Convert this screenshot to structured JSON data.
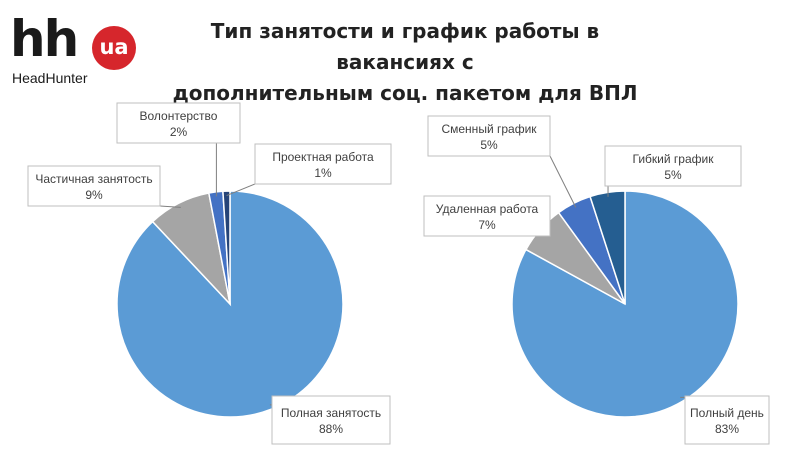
{
  "logo": {
    "mark": "hh",
    "badge": "ua",
    "wordmark": "HeadHunter"
  },
  "title_line1": "Тип занятости и график работы в вакансиях с",
  "title_line2": "дополнительным соц. пакетом для ВПЛ",
  "chart_data": [
    {
      "type": "pie",
      "slices": [
        {
          "label": "Полная занятость",
          "value": 88,
          "value_label": "88%",
          "color": "#5b9bd5"
        },
        {
          "label": "Частичная занятость",
          "value": 9,
          "value_label": "9%",
          "color": "#a5a5a5"
        },
        {
          "label": "Волонтерство",
          "value": 2,
          "value_label": "2%",
          "color": "#4472c4"
        },
        {
          "label": "Проектная работа",
          "value": 1,
          "value_label": "1%",
          "color": "#264478"
        }
      ]
    },
    {
      "type": "pie",
      "slices": [
        {
          "label": "Полный день",
          "value": 83,
          "value_label": "83%",
          "color": "#5b9bd5"
        },
        {
          "label": "Удаленная работа",
          "value": 7,
          "value_label": "7%",
          "color": "#a5a5a5"
        },
        {
          "label": "Сменный график",
          "value": 5,
          "value_label": "5%",
          "color": "#4472c4"
        },
        {
          "label": "Гибкий график",
          "value": 5,
          "value_label": "5%",
          "color": "#255e91"
        }
      ]
    }
  ]
}
